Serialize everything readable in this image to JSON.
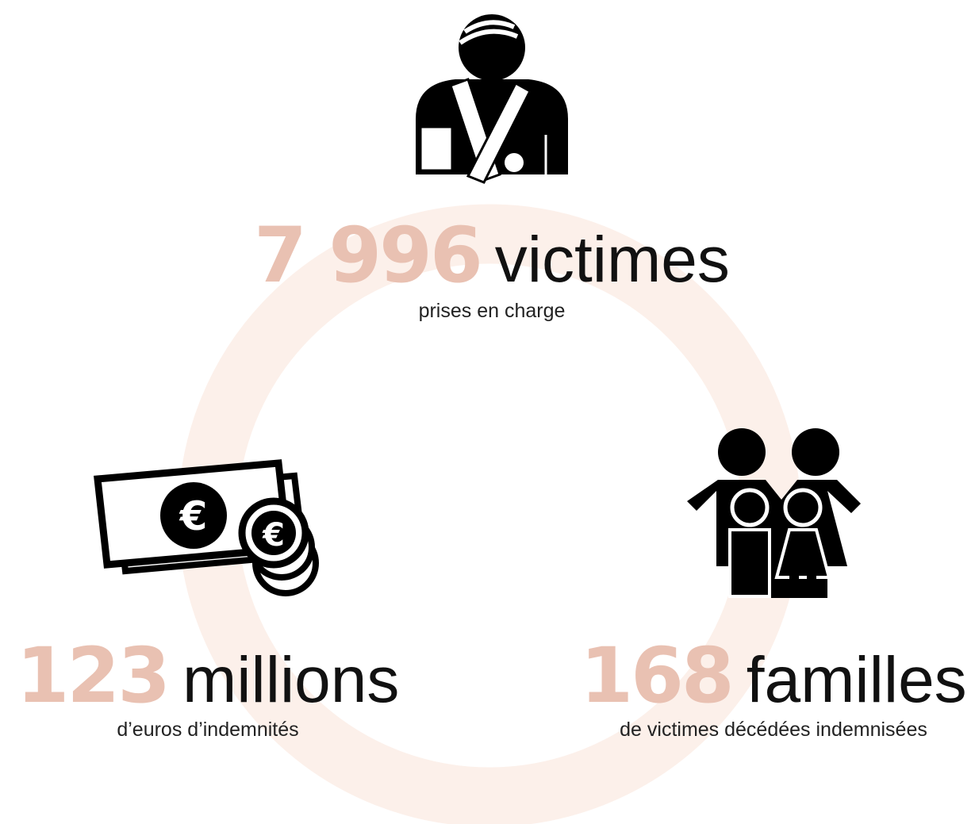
{
  "stats": [
    {
      "number": "7 996",
      "word": "victimes",
      "caption": "prises en charge"
    },
    {
      "number": "123",
      "word": "millions",
      "caption": "d’euros d’indemnités"
    },
    {
      "number": "168",
      "word": "familles",
      "caption": "de victimes décédées indemnisées"
    }
  ]
}
